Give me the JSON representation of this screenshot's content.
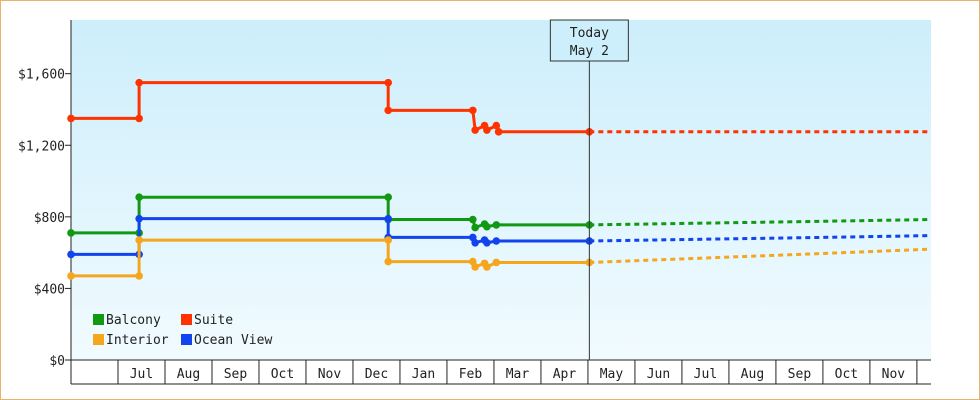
{
  "chart_data": {
    "type": "line",
    "title": "",
    "xlabel": "",
    "ylabel": "",
    "ylim": [
      0,
      1900
    ],
    "yticks": [
      0,
      400,
      800,
      1200,
      1600
    ],
    "ytick_labels": [
      "$0",
      "$400",
      "$800",
      "$1,200",
      "$1,600"
    ],
    "month_labels": [
      "Jul",
      "Aug",
      "Sep",
      "Oct",
      "Nov",
      "Dec",
      "Jan",
      "Feb",
      "Mar",
      "Apr",
      "May",
      "Jun",
      "Jul",
      "Aug",
      "Sep",
      "Oct",
      "Nov"
    ],
    "x_unit": "months from start of Jun of the first year",
    "xlim": [
      0,
      18.3
    ],
    "today": {
      "line1": "Today",
      "line2": "May 2",
      "x": 11.03
    },
    "grid": false,
    "legend_position": "bottom-left",
    "series": [
      {
        "name": "Suite",
        "color": "#ff3300",
        "history": [
          [
            0.0,
            1350
          ],
          [
            1.45,
            1350
          ],
          [
            1.45,
            1550
          ],
          [
            6.75,
            1550
          ],
          [
            6.75,
            1395
          ],
          [
            8.55,
            1395
          ],
          [
            8.6,
            1285
          ],
          [
            8.8,
            1310
          ],
          [
            8.85,
            1285
          ],
          [
            9.05,
            1310
          ],
          [
            9.1,
            1275
          ],
          [
            11.03,
            1275
          ]
        ],
        "forecast": [
          [
            11.03,
            1275
          ],
          [
            18.3,
            1275
          ]
        ]
      },
      {
        "name": "Balcony",
        "color": "#119911",
        "history": [
          [
            0.0,
            710
          ],
          [
            1.45,
            710
          ],
          [
            1.45,
            910
          ],
          [
            6.75,
            910
          ],
          [
            6.75,
            785
          ],
          [
            8.55,
            785
          ],
          [
            8.6,
            740
          ],
          [
            8.8,
            760
          ],
          [
            8.85,
            745
          ],
          [
            9.05,
            755
          ],
          [
            11.03,
            755
          ]
        ],
        "forecast": [
          [
            11.03,
            755
          ],
          [
            13.5,
            765
          ],
          [
            16,
            775
          ],
          [
            18.3,
            785
          ]
        ]
      },
      {
        "name": "Ocean View",
        "color": "#1144ee",
        "history": [
          [
            0.0,
            590
          ],
          [
            1.45,
            590
          ],
          [
            1.45,
            790
          ],
          [
            6.75,
            790
          ],
          [
            6.75,
            685
          ],
          [
            8.55,
            685
          ],
          [
            8.6,
            655
          ],
          [
            8.8,
            670
          ],
          [
            8.85,
            655
          ],
          [
            9.05,
            665
          ],
          [
            11.03,
            665
          ]
        ],
        "forecast": [
          [
            11.03,
            665
          ],
          [
            13.5,
            675
          ],
          [
            16,
            685
          ],
          [
            18.3,
            695
          ]
        ]
      },
      {
        "name": "Interior",
        "color": "#f5a61d",
        "history": [
          [
            0.0,
            470
          ],
          [
            1.45,
            470
          ],
          [
            1.45,
            670
          ],
          [
            6.75,
            670
          ],
          [
            6.75,
            550
          ],
          [
            8.55,
            550
          ],
          [
            8.6,
            520
          ],
          [
            8.8,
            540
          ],
          [
            8.85,
            520
          ],
          [
            9.05,
            545
          ],
          [
            11.03,
            545
          ]
        ],
        "forecast": [
          [
            11.03,
            545
          ],
          [
            13.5,
            570
          ],
          [
            16,
            595
          ],
          [
            18.3,
            620
          ]
        ]
      }
    ],
    "legend": [
      {
        "label": "Balcony",
        "color": "#119911"
      },
      {
        "label": "Suite",
        "color": "#ff3300"
      },
      {
        "label": "Interior",
        "color": "#f5a61d"
      },
      {
        "label": "Ocean View",
        "color": "#1144ee"
      }
    ]
  }
}
